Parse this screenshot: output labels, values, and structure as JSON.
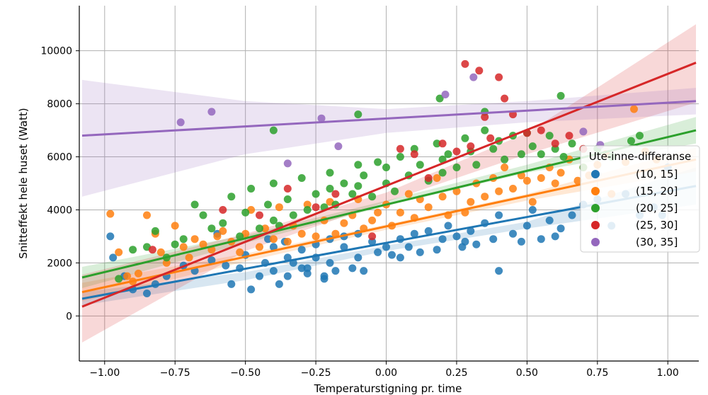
{
  "chart_data": {
    "type": "scatter",
    "title": "",
    "xlabel": "Temperaturstigning pr. time",
    "ylabel": "Snitteffekt hele huset (Watt)",
    "xlim": [
      -1.09,
      1.11
    ],
    "ylim": [
      -1700,
      11700
    ],
    "xticks": [
      -1.0,
      -0.75,
      -0.5,
      -0.25,
      0.0,
      0.25,
      0.5,
      0.75,
      1.0
    ],
    "xtick_labels": [
      "−1.00",
      "−0.75",
      "−0.50",
      "−0.25",
      "0.00",
      "0.25",
      "0.50",
      "0.75",
      "1.00"
    ],
    "yticks": [
      0,
      2000,
      4000,
      6000,
      8000,
      10000
    ],
    "ytick_labels": [
      "0",
      "2000",
      "4000",
      "6000",
      "8000",
      "10000"
    ],
    "grid": true,
    "legend_title": "Ute-inne-differanse",
    "legend_position": "right",
    "series": [
      {
        "name": "(10, 15]",
        "color": "#1f77b4",
        "fit": {
          "x": [
            -1.08,
            1.1
          ],
          "y": [
            650,
            4900
          ]
        },
        "band": {
          "x": [
            -1.08,
            -0.5,
            0.0,
            0.5,
            1.1
          ],
          "lower": [
            400,
            1350,
            2450,
            3300,
            4200
          ],
          "upper": [
            900,
            1650,
            2650,
            3550,
            5600
          ]
        },
        "x": [
          -0.97,
          -0.93,
          -0.9,
          -0.85,
          -0.82,
          -0.78,
          -0.72,
          -0.68,
          -0.62,
          -0.57,
          -0.55,
          -0.52,
          -0.5,
          -0.48,
          -0.45,
          -0.43,
          -0.4,
          -0.4,
          -0.38,
          -0.36,
          -0.35,
          -0.35,
          -0.33,
          -0.3,
          -0.3,
          -0.28,
          -0.25,
          -0.25,
          -0.22,
          -0.2,
          -0.2,
          -0.18,
          -0.15,
          -0.15,
          -0.12,
          -0.1,
          -0.1,
          -0.08,
          -0.05,
          -0.03,
          0.0,
          0.02,
          0.05,
          0.08,
          0.1,
          0.12,
          0.15,
          0.18,
          0.2,
          0.22,
          0.25,
          0.28,
          0.3,
          0.32,
          0.35,
          0.38,
          0.4,
          0.45,
          0.48,
          0.5,
          0.52,
          0.55,
          0.58,
          0.6,
          0.62,
          0.66,
          0.7,
          0.75,
          0.8,
          0.85,
          0.9,
          0.95,
          0.98,
          1.0,
          -0.98,
          -0.6,
          -0.42,
          -0.28,
          -0.22,
          0.05,
          0.27,
          0.4
        ],
        "y": [
          2200,
          1500,
          1000,
          850,
          1200,
          1500,
          1900,
          1700,
          2100,
          1900,
          1200,
          1800,
          2300,
          1000,
          1500,
          2000,
          2600,
          1700,
          1200,
          2800,
          1500,
          2200,
          2000,
          1800,
          2500,
          1600,
          2200,
          2700,
          1500,
          2000,
          2900,
          1700,
          2600,
          3000,
          1800,
          2200,
          3100,
          1700,
          2800,
          2400,
          2600,
          2300,
          2900,
          2600,
          3100,
          2400,
          3200,
          2500,
          2900,
          3400,
          3000,
          2800,
          3200,
          2700,
          3500,
          2900,
          3800,
          3100,
          2800,
          3400,
          4000,
          2900,
          3600,
          3000,
          3300,
          3800,
          4200,
          4400,
          3400,
          4600,
          3800,
          4100,
          3800,
          5600,
          3000,
          3100,
          2900,
          1800,
          1400,
          2200,
          2600,
          1700
        ]
      },
      {
        "name": "(15, 20]",
        "color": "#ff7f0e",
        "fit": {
          "x": [
            -1.08,
            1.1
          ],
          "y": [
            900,
            5900
          ]
        },
        "band": {
          "x": [
            -1.08,
            -0.5,
            0.0,
            0.5,
            1.1
          ],
          "lower": [
            550,
            2050,
            3250,
            4350,
            5450
          ],
          "upper": [
            1250,
            2350,
            3450,
            4600,
            6350
          ]
        },
        "x": [
          -0.98,
          -0.95,
          -0.92,
          -0.9,
          -0.88,
          -0.85,
          -0.82,
          -0.8,
          -0.78,
          -0.75,
          -0.72,
          -0.7,
          -0.68,
          -0.65,
          -0.62,
          -0.6,
          -0.58,
          -0.55,
          -0.52,
          -0.5,
          -0.48,
          -0.45,
          -0.43,
          -0.4,
          -0.38,
          -0.35,
          -0.33,
          -0.3,
          -0.28,
          -0.25,
          -0.22,
          -0.2,
          -0.18,
          -0.15,
          -0.12,
          -0.1,
          -0.08,
          -0.05,
          -0.03,
          0.0,
          0.02,
          0.05,
          0.08,
          0.1,
          0.12,
          0.15,
          0.18,
          0.2,
          0.22,
          0.25,
          0.28,
          0.3,
          0.32,
          0.35,
          0.38,
          0.4,
          0.42,
          0.45,
          0.48,
          0.5,
          0.52,
          0.55,
          0.58,
          0.6,
          0.62,
          0.65,
          0.68,
          0.7,
          0.72,
          0.75,
          0.78,
          0.8,
          0.85,
          0.88,
          0.92,
          0.96
        ],
        "y": [
          3850,
          2400,
          1500,
          1300,
          1600,
          3800,
          3100,
          2400,
          2000,
          3400,
          2600,
          2200,
          2900,
          2700,
          2500,
          3000,
          3200,
          2800,
          2400,
          3100,
          4000,
          2600,
          3300,
          2900,
          4100,
          2800,
          3400,
          3100,
          4200,
          3000,
          3600,
          4300,
          3100,
          3500,
          3800,
          4400,
          3300,
          3600,
          3900,
          4200,
          3400,
          3900,
          4600,
          3700,
          4400,
          4100,
          5200,
          4500,
          3800,
          4700,
          3900,
          4300,
          5000,
          4500,
          5200,
          4700,
          5600,
          4800,
          5300,
          5100,
          4300,
          5200,
          5600,
          5000,
          5400,
          5900,
          5100,
          5600,
          5300,
          5700,
          6100,
          4600,
          5800,
          7800,
          6200,
          5900
        ]
      },
      {
        "name": "(20, 25]",
        "color": "#2ca02c",
        "fit": {
          "x": [
            -1.08,
            1.1
          ],
          "y": [
            1450,
            7000
          ]
        },
        "band": {
          "x": [
            -1.08,
            -0.5,
            0.0,
            0.5,
            1.1
          ],
          "lower": [
            1050,
            2750,
            4150,
            5400,
            6500
          ],
          "upper": [
            1850,
            3050,
            4350,
            5700,
            7500
          ]
        },
        "x": [
          -0.95,
          -0.9,
          -0.85,
          -0.82,
          -0.78,
          -0.75,
          -0.72,
          -0.68,
          -0.65,
          -0.62,
          -0.58,
          -0.55,
          -0.52,
          -0.5,
          -0.48,
          -0.45,
          -0.42,
          -0.4,
          -0.4,
          -0.38,
          -0.35,
          -0.33,
          -0.3,
          -0.28,
          -0.25,
          -0.22,
          -0.2,
          -0.2,
          -0.18,
          -0.15,
          -0.12,
          -0.1,
          -0.1,
          -0.08,
          -0.05,
          -0.03,
          0.0,
          0.0,
          0.03,
          0.05,
          0.08,
          0.1,
          0.12,
          0.15,
          0.18,
          0.2,
          0.2,
          0.22,
          0.25,
          0.28,
          0.3,
          0.32,
          0.35,
          0.38,
          0.4,
          0.42,
          0.45,
          0.48,
          0.5,
          0.52,
          0.55,
          0.58,
          0.6,
          0.63,
          0.66,
          0.7,
          0.75,
          0.8,
          0.87,
          0.9,
          -0.4,
          -0.1,
          0.19,
          0.35,
          0.62
        ],
        "y": [
          1400,
          2500,
          2600,
          3200,
          2200,
          2700,
          2900,
          4200,
          3800,
          3300,
          3500,
          4500,
          3000,
          3900,
          4800,
          3300,
          4200,
          3600,
          5000,
          3400,
          4400,
          3800,
          5200,
          4000,
          4600,
          4100,
          5400,
          4800,
          4200,
          5000,
          4600,
          5700,
          4900,
          5300,
          4500,
          5800,
          5000,
          5600,
          4700,
          6000,
          5300,
          6300,
          5700,
          5100,
          6500,
          5900,
          5400,
          6100,
          5600,
          6700,
          6200,
          5700,
          7000,
          6300,
          6600,
          5900,
          6800,
          6100,
          6900,
          6400,
          6100,
          6800,
          6300,
          6000,
          6500,
          5600,
          6300,
          6000,
          6600,
          6800,
          7000,
          7600,
          8200,
          7700,
          8300
        ]
      },
      {
        "name": "(25, 30]",
        "color": "#d62728",
        "fit": {
          "x": [
            -1.08,
            1.1
          ],
          "y": [
            350,
            9550
          ]
        },
        "band": {
          "x": [
            -1.08,
            -0.5,
            0.0,
            0.5,
            1.1
          ],
          "lower": [
            -1000,
            2450,
            4300,
            6100,
            8050
          ],
          "upper": [
            1550,
            3100,
            4650,
            6900,
            11000
          ]
        },
        "x": [
          -0.83,
          -0.58,
          -0.45,
          -0.35,
          -0.25,
          -0.18,
          -0.05,
          0.05,
          0.1,
          0.15,
          0.2,
          0.25,
          0.28,
          0.3,
          0.33,
          0.35,
          0.37,
          0.4,
          0.42,
          0.45,
          0.5,
          0.55,
          0.6,
          0.65,
          0.7
        ],
        "y": [
          2500,
          4000,
          3800,
          4800,
          4100,
          4600,
          3000,
          6300,
          6100,
          5200,
          6500,
          6200,
          9500,
          6400,
          9250,
          7500,
          6700,
          9000,
          8200,
          7600,
          6900,
          7000,
          6500,
          6800,
          6300
        ]
      },
      {
        "name": "(30, 35]",
        "color": "#9467bd",
        "fit": {
          "x": [
            -1.08,
            1.1
          ],
          "y": [
            6800,
            8100
          ]
        },
        "band": {
          "x": [
            -1.08,
            -0.5,
            0.0,
            0.5,
            1.1
          ],
          "lower": [
            4500,
            6100,
            6900,
            7300,
            7600
          ],
          "upper": [
            8900,
            8100,
            7800,
            8100,
            8600
          ]
        },
        "x": [
          -0.73,
          -0.62,
          -0.23,
          -0.17,
          -0.35,
          0.21,
          0.31,
          0.7,
          0.76
        ],
        "y": [
          7300,
          7700,
          7450,
          6400,
          5750,
          8350,
          9000,
          6950,
          6450
        ]
      }
    ]
  }
}
